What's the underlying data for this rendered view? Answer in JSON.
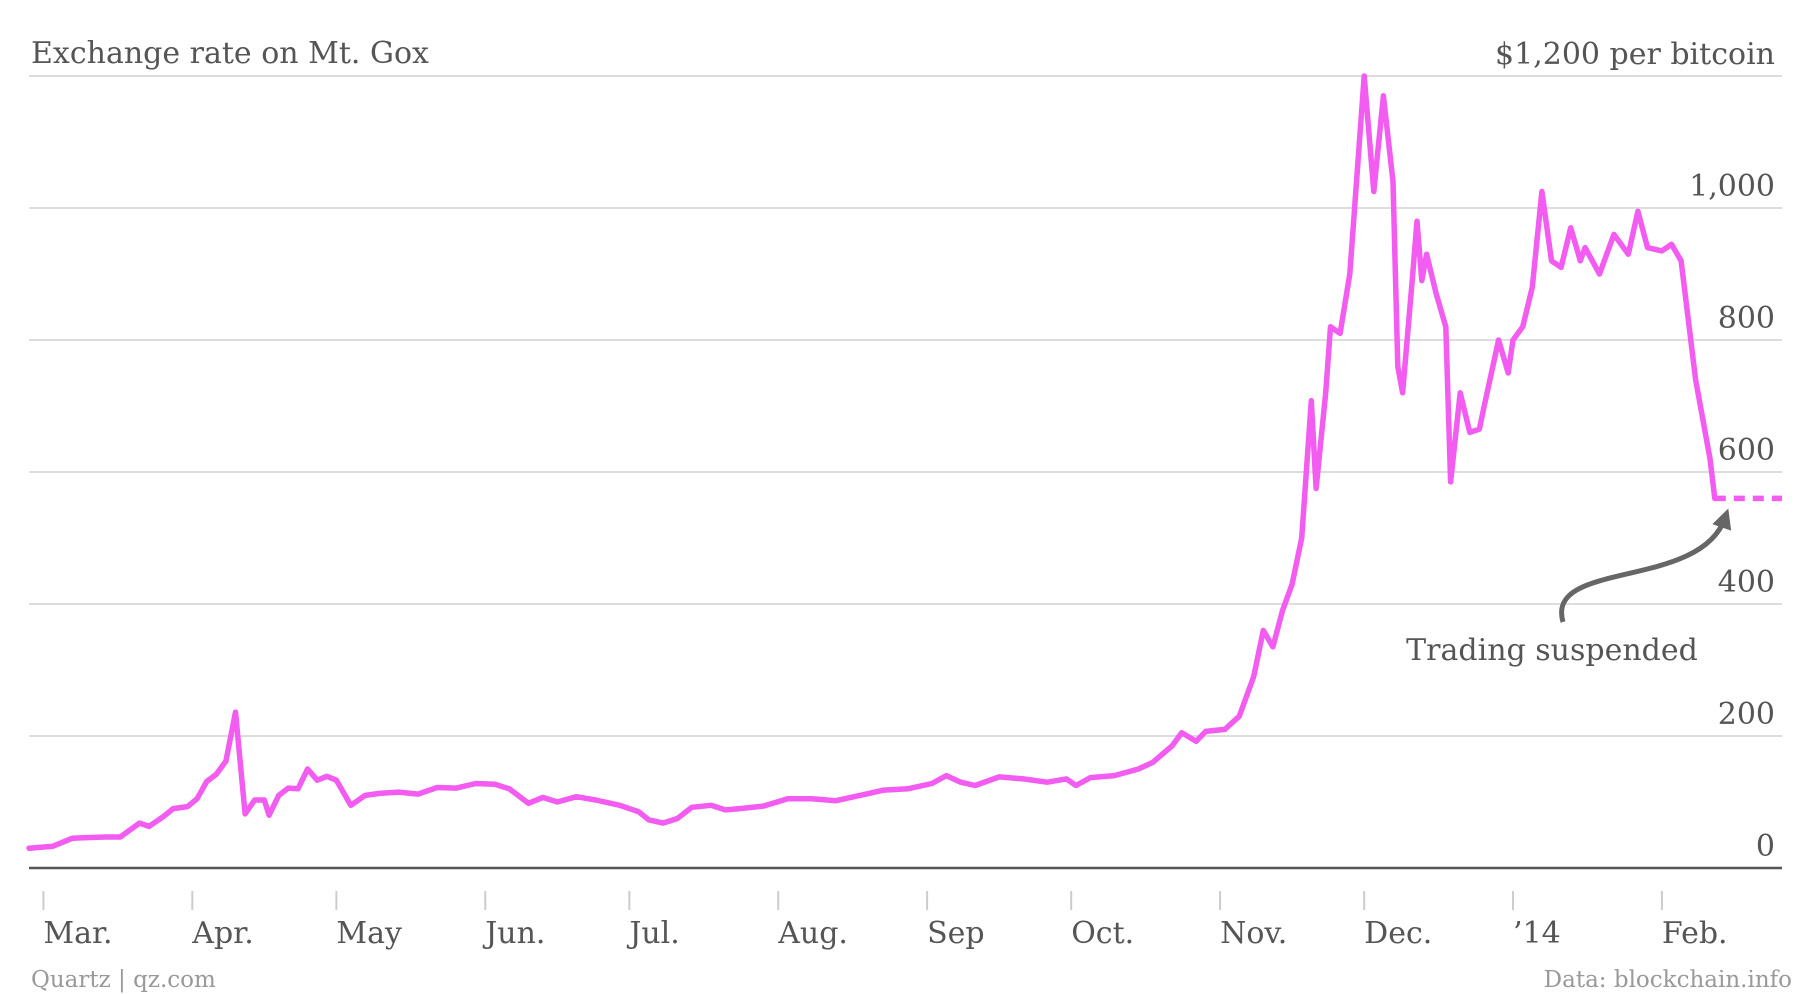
{
  "chart_data": {
    "type": "line",
    "title": "Exchange rate on Mt. Gox",
    "annotation": "Trading suspended",
    "source": "Data: blockchain.info",
    "credit": "Quartz | qz.com",
    "xlim": [
      "2013-02-26",
      "2014-02-26"
    ],
    "xticks": [
      {
        "value": "2013-03-01",
        "label": "Mar."
      },
      {
        "value": "2013-04-01",
        "label": "Apr."
      },
      {
        "value": "2013-05-01",
        "label": "May"
      },
      {
        "value": "2013-06-01",
        "label": "Jun."
      },
      {
        "value": "2013-07-01",
        "label": "Jul."
      },
      {
        "value": "2013-08-01",
        "label": "Aug."
      },
      {
        "value": "2013-09-01",
        "label": "Sep"
      },
      {
        "value": "2013-10-01",
        "label": "Oct."
      },
      {
        "value": "2013-11-01",
        "label": "Nov."
      },
      {
        "value": "2013-12-01",
        "label": "Dec."
      },
      {
        "value": "2014-01-01",
        "label": "’14"
      },
      {
        "value": "2014-02-01",
        "label": "Feb."
      }
    ],
    "ylim": [
      0,
      1200
    ],
    "yticks": [
      0,
      200,
      400,
      600,
      800,
      {
        "value": 1000,
        "label": "1,000"
      },
      {
        "value": 1200,
        "label": "$1,200 per bitcoin"
      }
    ],
    "grid": true,
    "series": [
      {
        "color": "#f25cf0",
        "dashed": false,
        "x": [
          "2013-02-26",
          "2013-03-03",
          "2013-03-07",
          "2013-03-10",
          "2013-03-14",
          "2013-03-17",
          "2013-03-21",
          "2013-03-23",
          "2013-03-26",
          "2013-03-28",
          "2013-03-31",
          "2013-04-02",
          "2013-04-04",
          "2013-04-06",
          "2013-04-08",
          "2013-04-10",
          "2013-04-12",
          "2013-04-14",
          "2013-04-16",
          "2013-04-17",
          "2013-04-19",
          "2013-04-21",
          "2013-04-23",
          "2013-04-25",
          "2013-04-27",
          "2013-04-29",
          "2013-05-01",
          "2013-05-04",
          "2013-05-07",
          "2013-05-10",
          "2013-05-14",
          "2013-05-18",
          "2013-05-22",
          "2013-05-26",
          "2013-05-30",
          "2013-06-03",
          "2013-06-06",
          "2013-06-10",
          "2013-06-13",
          "2013-06-16",
          "2013-06-20",
          "2013-06-24",
          "2013-06-29",
          "2013-07-03",
          "2013-07-05",
          "2013-07-08",
          "2013-07-11",
          "2013-07-14",
          "2013-07-18",
          "2013-07-21",
          "2013-07-24",
          "2013-07-29",
          "2013-08-03",
          "2013-08-08",
          "2013-08-13",
          "2013-08-18",
          "2013-08-23",
          "2013-08-28",
          "2013-09-02",
          "2013-09-05",
          "2013-09-08",
          "2013-09-11",
          "2013-09-16",
          "2013-09-21",
          "2013-09-26",
          "2013-09-30",
          "2013-10-02",
          "2013-10-05",
          "2013-10-10",
          "2013-10-15",
          "2013-10-18",
          "2013-10-22",
          "2013-10-24",
          "2013-10-27",
          "2013-10-29",
          "2013-11-02",
          "2013-11-05",
          "2013-11-08",
          "2013-11-10",
          "2013-11-12",
          "2013-11-14",
          "2013-11-16",
          "2013-11-18",
          "2013-11-20",
          "2013-11-21",
          "2013-11-23",
          "2013-11-24",
          "2013-11-26",
          "2013-11-28",
          "2013-11-30",
          "2013-12-01",
          "2013-12-03",
          "2013-12-05",
          "2013-12-07",
          "2013-12-08",
          "2013-12-09",
          "2013-12-11",
          "2013-12-12",
          "2013-12-13",
          "2013-12-14",
          "2013-12-16",
          "2013-12-18",
          "2013-12-19",
          "2013-12-21",
          "2013-12-23",
          "2013-12-25",
          "2013-12-26",
          "2013-12-29",
          "2013-12-31",
          "2014-01-01",
          "2014-01-03",
          "2014-01-05",
          "2014-01-07",
          "2014-01-09",
          "2014-01-11",
          "2014-01-13",
          "2014-01-15",
          "2014-01-16",
          "2014-01-19",
          "2014-01-22",
          "2014-01-25",
          "2014-01-27",
          "2014-01-29",
          "2014-02-01",
          "2014-02-03",
          "2014-02-05",
          "2014-02-08",
          "2014-02-11",
          "2014-02-12"
        ],
        "values": [
          30,
          33,
          45,
          46,
          47,
          47,
          68,
          63,
          78,
          90,
          93,
          105,
          131,
          142,
          162,
          236,
          82,
          103,
          103,
          80,
          110,
          121,
          120,
          150,
          133,
          139,
          133,
          95,
          110,
          113,
          115,
          112,
          122,
          121,
          128,
          127,
          120,
          98,
          107,
          100,
          108,
          103,
          95,
          85,
          73,
          68,
          75,
          92,
          95,
          88,
          90,
          94,
          105,
          105,
          102,
          110,
          118,
          120,
          128,
          140,
          130,
          125,
          138,
          135,
          130,
          135,
          125,
          137,
          140,
          150,
          160,
          185,
          205,
          192,
          207,
          210,
          230,
          290,
          360,
          335,
          390,
          430,
          500,
          708,
          575,
          720,
          820,
          810,
          900,
          1100,
          1200,
          1025,
          1170,
          1040,
          760,
          720,
          890,
          980,
          890,
          930,
          870,
          820,
          585,
          720,
          660,
          665,
          700,
          800,
          750,
          800,
          820,
          880,
          1025,
          920,
          910,
          970,
          920,
          940,
          900,
          960,
          930,
          995,
          940,
          935,
          945,
          920,
          740,
          620,
          560
        ]
      },
      {
        "color": "#f25cf0",
        "dashed": true,
        "x": [
          "2014-02-12",
          "2014-02-26"
        ],
        "values": [
          560,
          560
        ]
      }
    ]
  }
}
